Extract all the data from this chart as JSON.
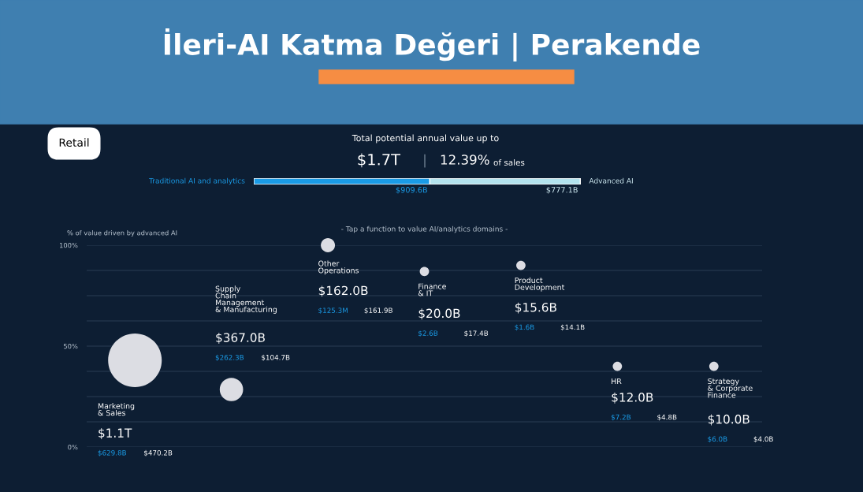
{
  "chart_data": [
    {
      "type": "bar",
      "orientation": "horizontal",
      "stacked": true,
      "title": "İleri-AI Katma Değeri | Perakende",
      "subtitle": "Total potential annual value up to",
      "categories": [
        null
      ],
      "tick_labels": false,
      "annotations": [
        "Retail",
        "$1.7T",
        "12.39%",
        "of sales"
      ],
      "series": [
        {
          "name": "Traditional AI and analytics",
          "color": "#1a9be6",
          "values": [
            909.6
          ],
          "value_labels": [
            "$909.6B"
          ]
        },
        {
          "name": "Advanced AI",
          "color": "#b3e3ee",
          "values": [
            777.1
          ],
          "value_labels": [
            "$777.1B"
          ]
        }
      ]
    },
    {
      "type": "bubble",
      "ylabel": "% of value driven by advanced AI",
      "categories": [
        null,
        null,
        null,
        null,
        null,
        null,
        null
      ],
      "tick_labels": "y",
      "values": [
        43,
        28.5,
        100,
        87,
        90,
        40,
        40
      ],
      "sizes": [
        1,
        0.19,
        0.07,
        0.03,
        0.03,
        0.03,
        0.03
      ],
      "color": "#dcdde3",
      "ylim": [
        0,
        100
      ],
      "yticks": [
        {
          "value": 0,
          "label": "0%"
        },
        {
          "value": 12.5,
          "label": null
        },
        {
          "value": 25,
          "label": null
        },
        {
          "value": 37.5,
          "label": null
        },
        {
          "value": 50,
          "label": "50%"
        },
        {
          "value": 62.5,
          "label": null
        },
        {
          "value": 75,
          "label": null
        },
        {
          "value": 87.5,
          "label": null
        },
        {
          "value": 100,
          "label": "100%"
        }
      ],
      "grid": "y",
      "annotations": [
        "- Tap a function to value AI/analytics domains -",
        "Marketing\n& Sales",
        "$1.1T",
        "$629.8B",
        "$470.2B",
        "Supply\nChain\nManagement\n& Manufacturing",
        "$367.0B",
        "$262.3B",
        "$104.7B",
        "Other\nOperations",
        "$162.0B",
        "$125.3M",
        "$161.9B",
        "Finance\n& IT",
        "$20.0B",
        "$2.6B",
        "$17.4B",
        "Product\nDevelopment",
        "$15.6B",
        "$1.6B",
        "$14.1B",
        "HR",
        "$12.0B",
        "$7.2B",
        "$4.8B",
        "Strategy\n& Corporate\nFinance",
        "$10.0B",
        "$6.0B",
        "$4.0B"
      ]
    }
  ]
}
